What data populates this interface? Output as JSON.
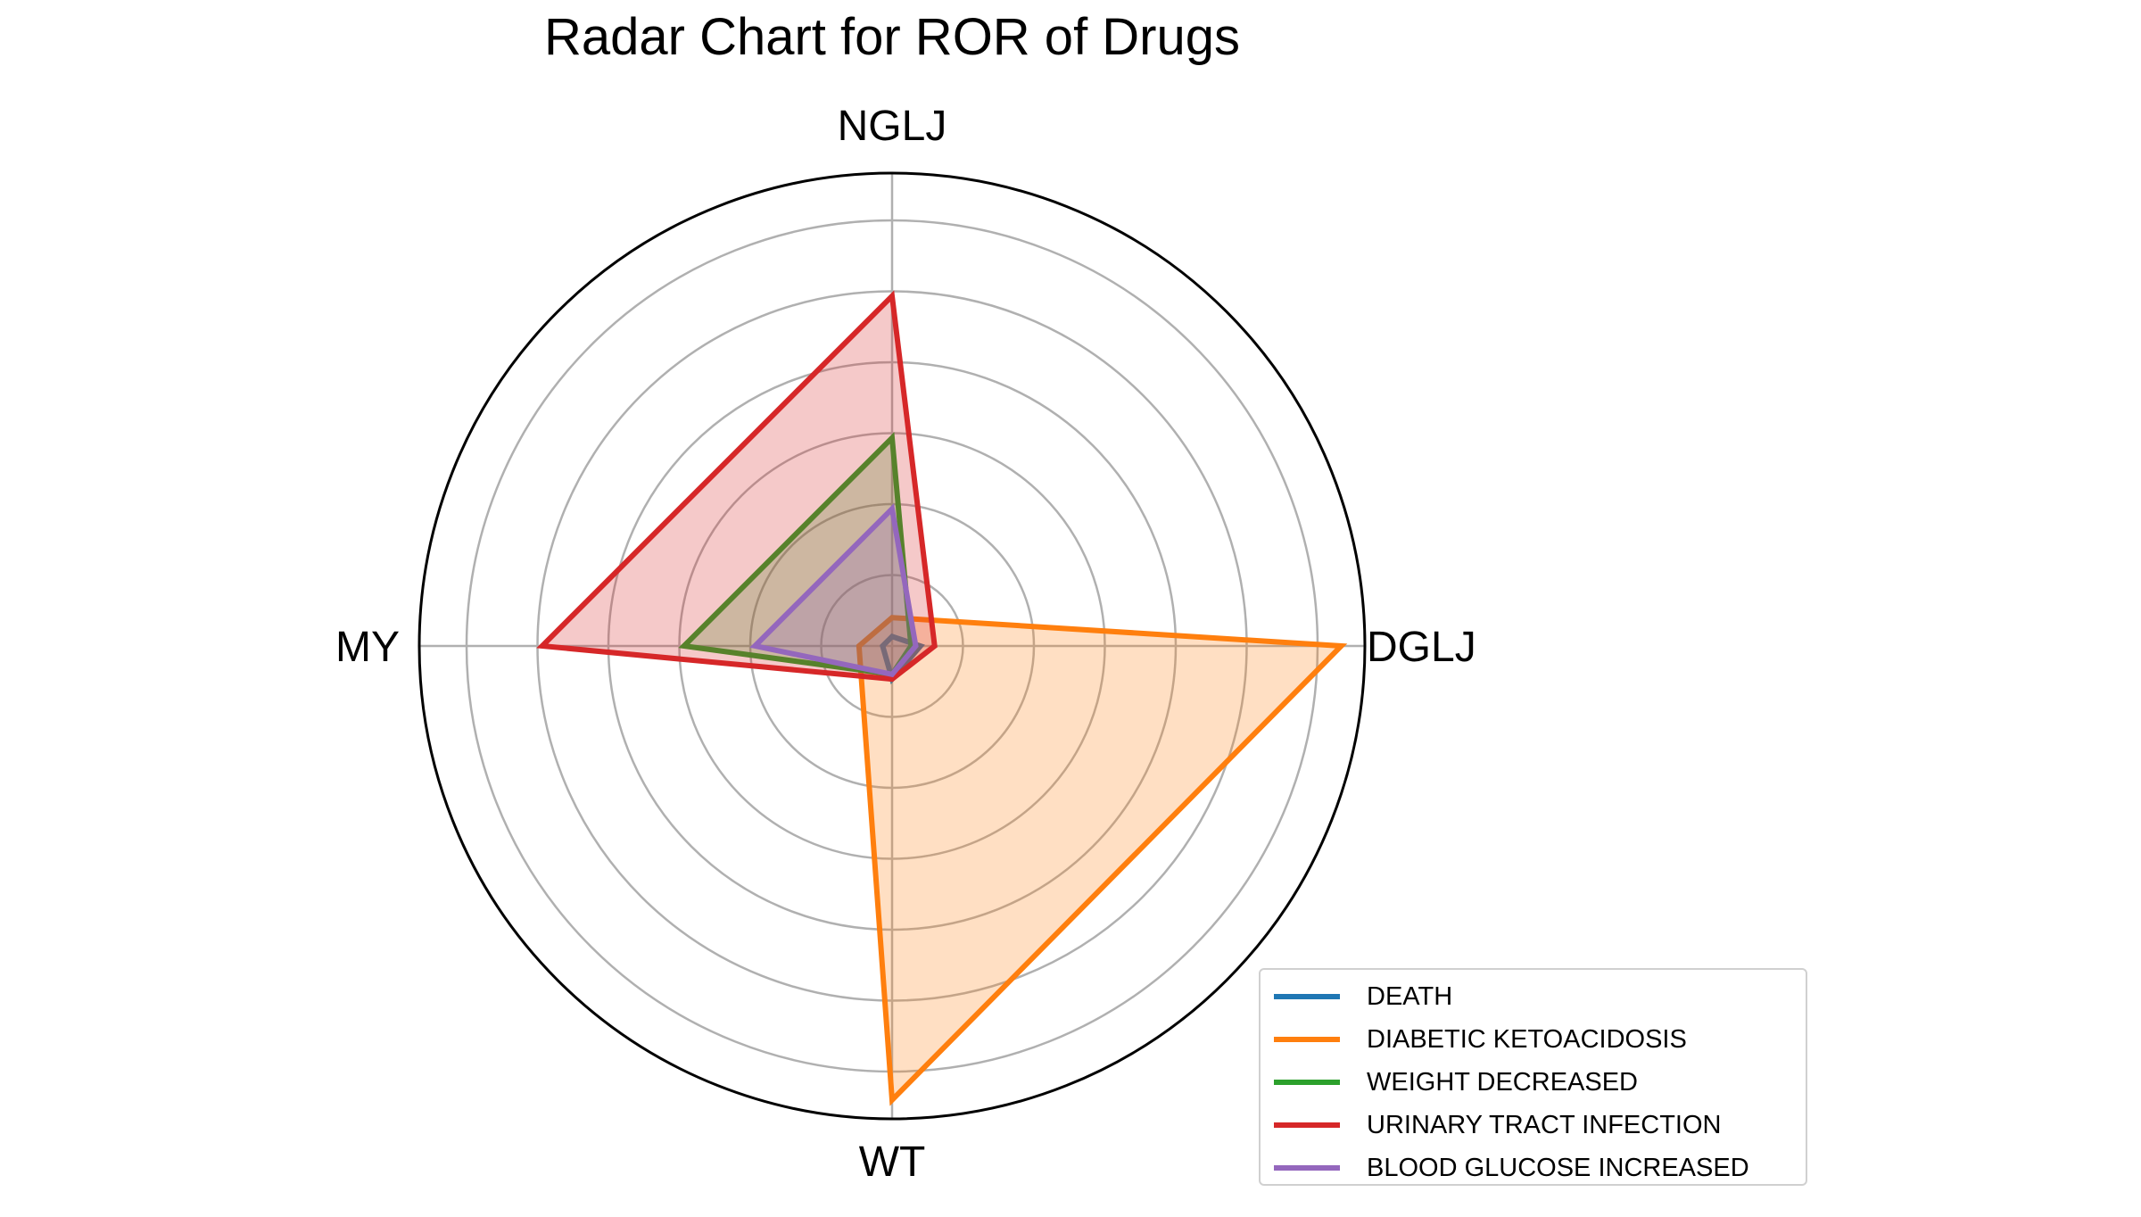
{
  "chart_data": {
    "type": "radar",
    "title": "Radar Chart for ROR of Drugs",
    "axes": [
      "NGLJ",
      "DGLJ",
      "WT",
      "MY"
    ],
    "rmax": 1.0,
    "rings": [
      0.15,
      0.3,
      0.45,
      0.6,
      0.75,
      0.9
    ],
    "grid": true,
    "legend_position": "bottom-right",
    "series": [
      {
        "name": "DEATH",
        "color": "#1f77b4",
        "fill": false,
        "values": [
          0.02,
          0.06,
          0.07,
          0.02
        ]
      },
      {
        "name": "DIABETIC KETOACIDOSIS",
        "color": "#ff7f0e",
        "fill": true,
        "values": [
          0.06,
          0.95,
          0.96,
          0.07
        ]
      },
      {
        "name": "WEIGHT DECREASED",
        "color": "#2ca02c",
        "fill": true,
        "values": [
          0.44,
          0.04,
          0.06,
          0.44
        ]
      },
      {
        "name": "URINARY TRACT INFECTION",
        "color": "#d62728",
        "fill": true,
        "values": [
          0.74,
          0.09,
          0.07,
          0.74
        ]
      },
      {
        "name": "BLOOD GLUCOSE INCREASED",
        "color": "#9467bd",
        "fill": true,
        "values": [
          0.29,
          0.05,
          0.06,
          0.29
        ]
      }
    ]
  }
}
